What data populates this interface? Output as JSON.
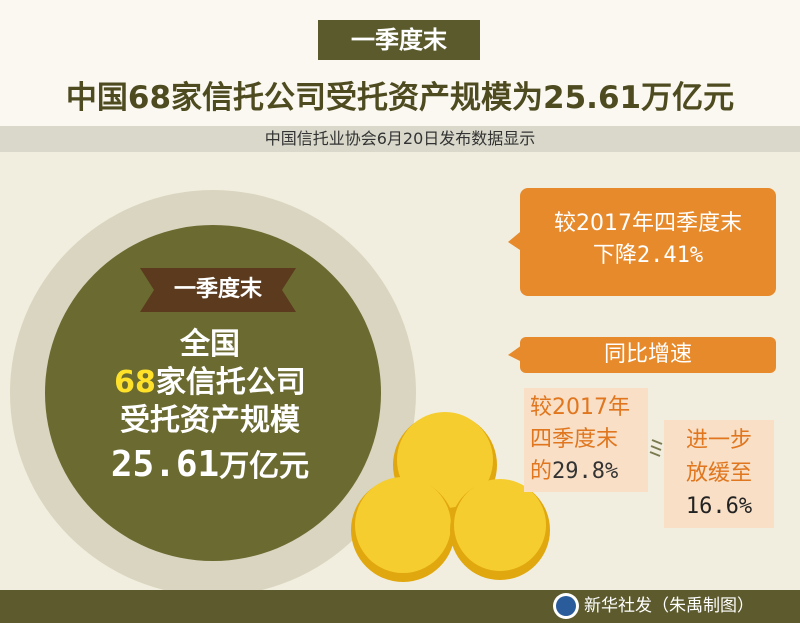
{
  "header": {
    "tag": "一季度末",
    "title": "中国68家信托公司受托资产规模为25.61万亿元",
    "subtitle": "中国信托业协会6月20日发布数据显示"
  },
  "circle": {
    "ribbon": "一季度末",
    "line1": "全国",
    "line2_highlight": "68",
    "line2_rest": "家信托公司",
    "line3": "受托资产规模",
    "line4_number": "25.61",
    "line4_unit": "万亿元"
  },
  "callout": {
    "line1": "较2017年四季度末",
    "line2_text": "下降",
    "line2_number": "2.41%"
  },
  "yoy": {
    "heading": "同比增速",
    "left": {
      "line1": "较2017年",
      "line2": "四季度末",
      "line3_text": "的",
      "line3_number": "29.8%"
    },
    "right": {
      "line1": "进一步",
      "line2": "放缓至",
      "line3": "16.6%"
    }
  },
  "footer": {
    "credit": "新华社发（朱禹制图）"
  }
}
